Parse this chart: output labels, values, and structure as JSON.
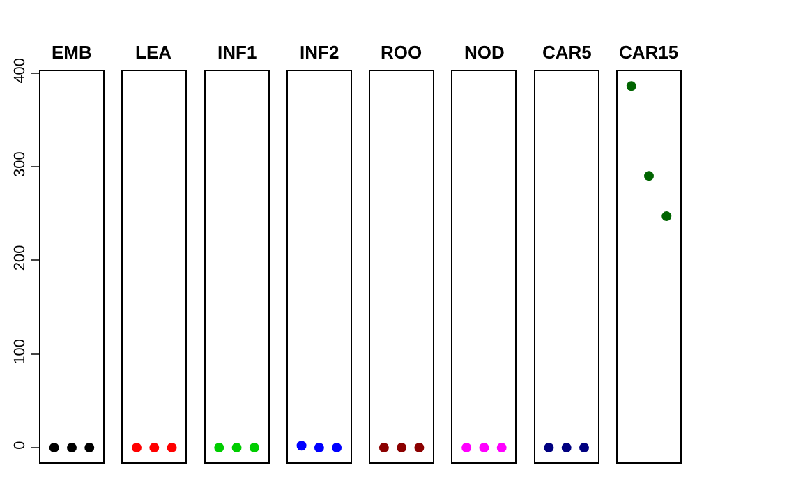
{
  "chart_data": {
    "type": "scatter",
    "categories": [
      "EMB",
      "LEA",
      "INF1",
      "INF2",
      "ROO",
      "NOD",
      "CAR5",
      "CAR15"
    ],
    "ylim": [
      -16,
      402
    ],
    "yticks": [
      0,
      100,
      200,
      300,
      400
    ],
    "marker": "circle",
    "series": [
      {
        "colors": [
          "#000000",
          "#ff0000",
          "#00cd00",
          "#0000ff",
          "#8b0000",
          "#ff00ff",
          "#000080",
          "#006400"
        ],
        "values": [
          0,
          0,
          0,
          2,
          0,
          0,
          0,
          386
        ]
      },
      {
        "colors": [
          "#000000",
          "#ff0000",
          "#00cd00",
          "#0000ff",
          "#8b0000",
          "#ff00ff",
          "#000080",
          "#006400"
        ],
        "values": [
          0,
          0,
          0,
          0,
          0,
          0,
          0,
          290
        ]
      },
      {
        "colors": [
          "#000000",
          "#ff0000",
          "#00cd00",
          "#0000ff",
          "#8b0000",
          "#ff00ff",
          "#000080",
          "#006400"
        ],
        "values": [
          0,
          0,
          0,
          0,
          0,
          0,
          0,
          247
        ]
      }
    ]
  }
}
